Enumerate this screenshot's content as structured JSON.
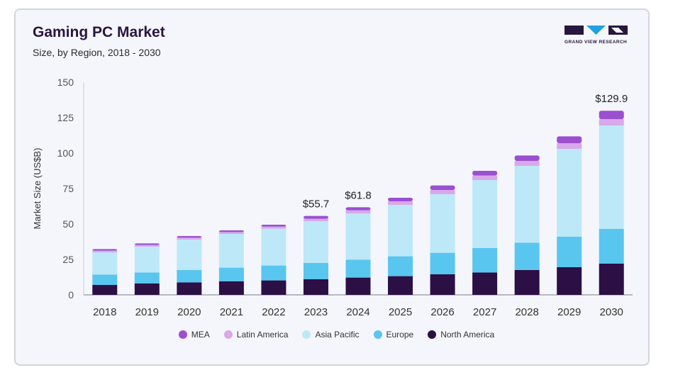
{
  "header": {
    "title": "Gaming PC Market",
    "subtitle": "Size, by Region, 2018 - 2030"
  },
  "logo": {
    "text": "GRAND VIEW RESEARCH",
    "color": "#2a1540",
    "accent": "#1fa3e0"
  },
  "colors": {
    "North America": "#2b0f45",
    "Europe": "#59c6ef",
    "Asia Pacific": "#bde8f8",
    "Latin America": "#d9a8e8",
    "MEA": "#9b4fd1"
  },
  "chart_data": {
    "type": "bar",
    "stacked": true,
    "title": "Gaming PC Market",
    "subtitle": "Size, by Region, 2018 - 2030",
    "ylabel": "Market Size (US$B)",
    "xlabel": "",
    "ylim": [
      0,
      150
    ],
    "yticks": [
      0,
      25,
      50,
      75,
      100,
      125,
      150
    ],
    "categories": [
      "2018",
      "2019",
      "2020",
      "2021",
      "2022",
      "2023",
      "2024",
      "2025",
      "2026",
      "2027",
      "2028",
      "2029",
      "2030"
    ],
    "series": [
      {
        "name": "North America",
        "values": [
          7,
          8,
          8.8,
          9.6,
          10.2,
          11,
          12.2,
          13.2,
          14.5,
          15.8,
          17.5,
          19.5,
          22
        ]
      },
      {
        "name": "Europe",
        "values": [
          7.3,
          7.8,
          8.7,
          9.6,
          10.5,
          11.5,
          12.7,
          14,
          15.2,
          17.2,
          19.3,
          21.5,
          24.5
        ]
      },
      {
        "name": "Asia Pacific",
        "values": [
          15.7,
          18.2,
          21.5,
          23.8,
          26,
          29.5,
          32.5,
          36.3,
          41.3,
          48,
          54.2,
          62,
          73
        ]
      },
      {
        "name": "Latin America",
        "values": [
          1.2,
          1.2,
          1.3,
          1.3,
          1.4,
          1.7,
          2.2,
          2.5,
          3,
          3.2,
          3.5,
          4,
          4.5
        ]
      },
      {
        "name": "MEA",
        "values": [
          1.1,
          1.1,
          1.2,
          1.2,
          1.4,
          2,
          2.2,
          2.5,
          3.2,
          3.3,
          3.8,
          4.8,
          5.9
        ]
      }
    ],
    "annotations": [
      {
        "category": "2023",
        "label": "$55.7"
      },
      {
        "category": "2024",
        "label": "$61.8"
      },
      {
        "category": "2030",
        "label": "$129.9"
      }
    ],
    "legend": {
      "position": "bottom",
      "order": [
        "MEA",
        "Latin America",
        "Asia Pacific",
        "Europe",
        "North America"
      ]
    },
    "grid": false
  }
}
